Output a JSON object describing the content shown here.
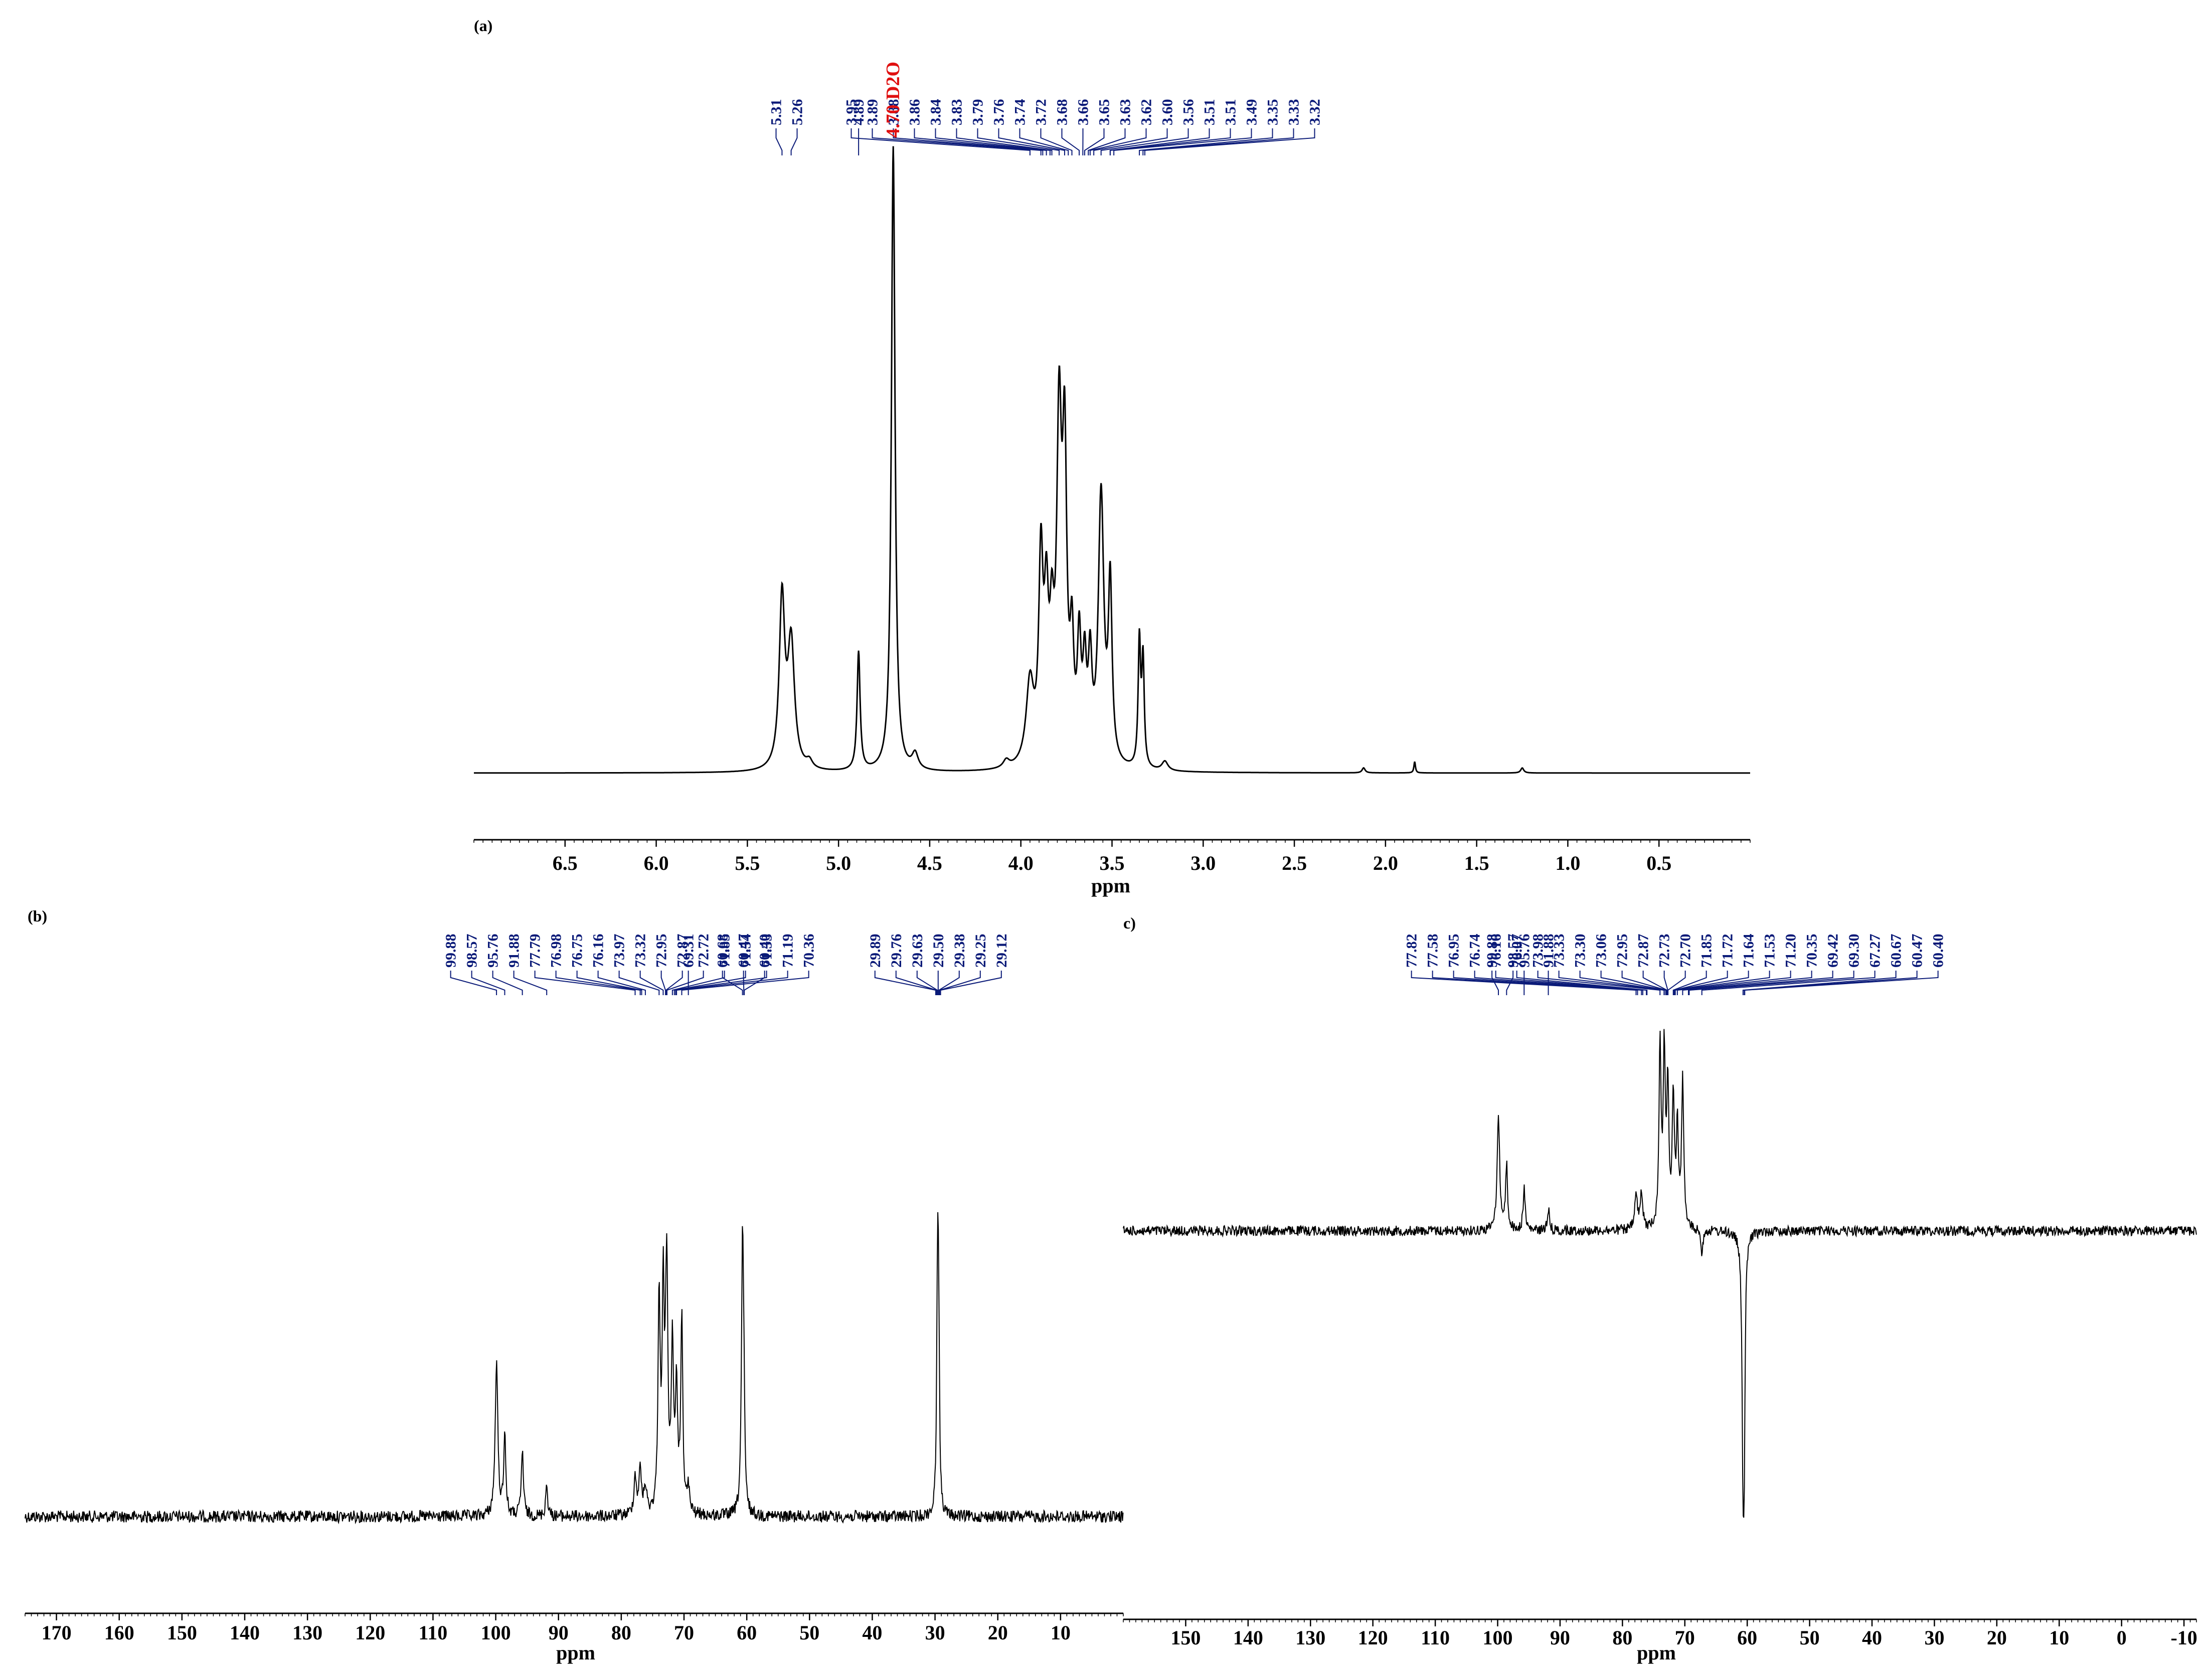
{
  "colors": {
    "spectrum": "#000000",
    "peak_label": "#0a1a78",
    "solvent_label": "#e01010",
    "axis": "#000000"
  },
  "chart_data": [
    {
      "id": "a",
      "type": "line",
      "panel_label": "(a)",
      "nucleus": "1H",
      "xlabel": "ppm",
      "x_reversed": true,
      "xlim": [
        7.0,
        0.0
      ],
      "xticks": [
        "6.5",
        "6.0",
        "5.5",
        "5.0",
        "4.5",
        "4.0",
        "3.5",
        "3.0",
        "2.5",
        "2.0",
        "1.5",
        "1.0",
        "0.5"
      ],
      "xtick_values": [
        6.5,
        6.0,
        5.5,
        5.0,
        4.5,
        4.0,
        3.5,
        3.0,
        2.5,
        2.0,
        1.5,
        1.0,
        0.5
      ],
      "ylim": [
        0,
        1.0
      ],
      "peaks": [
        {
          "ppm": 5.31,
          "height": 0.27,
          "width": 0.018
        },
        {
          "ppm": 5.26,
          "height": 0.2,
          "width": 0.022
        },
        {
          "ppm": 5.16,
          "height": 0.012,
          "width": 0.02
        },
        {
          "ppm": 4.89,
          "height": 0.19,
          "width": 0.01
        },
        {
          "ppm": 4.7,
          "height": 1.0,
          "width": 0.012
        },
        {
          "ppm": 4.58,
          "height": 0.025,
          "width": 0.02
        },
        {
          "ppm": 4.08,
          "height": 0.012,
          "width": 0.02
        },
        {
          "ppm": 3.95,
          "height": 0.13,
          "width": 0.025
        },
        {
          "ppm": 3.89,
          "height": 0.31,
          "width": 0.014
        },
        {
          "ppm": 3.86,
          "height": 0.22,
          "width": 0.014
        },
        {
          "ppm": 3.83,
          "height": 0.17,
          "width": 0.014
        },
        {
          "ppm": 3.79,
          "height": 0.52,
          "width": 0.016
        },
        {
          "ppm": 3.76,
          "height": 0.46,
          "width": 0.014
        },
        {
          "ppm": 3.72,
          "height": 0.17,
          "width": 0.012
        },
        {
          "ppm": 3.68,
          "height": 0.18,
          "width": 0.012
        },
        {
          "ppm": 3.65,
          "height": 0.14,
          "width": 0.012
        },
        {
          "ppm": 3.62,
          "height": 0.15,
          "width": 0.012
        },
        {
          "ppm": 3.56,
          "height": 0.43,
          "width": 0.018
        },
        {
          "ppm": 3.51,
          "height": 0.28,
          "width": 0.012
        },
        {
          "ppm": 3.35,
          "height": 0.2,
          "width": 0.008
        },
        {
          "ppm": 3.33,
          "height": 0.17,
          "width": 0.008
        },
        {
          "ppm": 3.21,
          "height": 0.015,
          "width": 0.02
        },
        {
          "ppm": 2.12,
          "height": 0.008,
          "width": 0.01
        },
        {
          "ppm": 1.84,
          "height": 0.018,
          "width": 0.005
        },
        {
          "ppm": 1.25,
          "height": 0.008,
          "width": 0.01
        }
      ],
      "peak_label_groups": [
        {
          "labels": [
            "5.31",
            "5.26"
          ],
          "ppms": [
            5.31,
            5.26
          ]
        },
        {
          "labels": [
            "4.89"
          ],
          "ppms": [
            4.89
          ]
        },
        {
          "labels": [
            "3.95",
            "3.89",
            "3.88",
            "3.86",
            "3.84",
            "3.83",
            "3.79",
            "3.76",
            "3.74",
            "3.72",
            "3.68",
            "3.66",
            "3.65",
            "3.63",
            "3.62",
            "3.60",
            "3.56",
            "3.51",
            "3.51",
            "3.49",
            "3.35",
            "3.33",
            "3.32"
          ],
          "ppms": [
            3.95,
            3.89,
            3.88,
            3.86,
            3.84,
            3.83,
            3.79,
            3.76,
            3.74,
            3.72,
            3.68,
            3.66,
            3.65,
            3.63,
            3.62,
            3.6,
            3.56,
            3.51,
            3.51,
            3.49,
            3.35,
            3.33,
            3.32
          ]
        }
      ],
      "solvent_label": {
        "text": "4.70 D2O",
        "ppm": 4.7
      }
    },
    {
      "id": "b",
      "type": "line",
      "panel_label": "(b)",
      "nucleus": "13C",
      "xlabel": "ppm",
      "x_reversed": true,
      "xlim": [
        175,
        0
      ],
      "xticks": [
        "170",
        "160",
        "150",
        "140",
        "130",
        "120",
        "110",
        "100",
        "90",
        "80",
        "70",
        "60",
        "50",
        "40",
        "30",
        "20",
        "10"
      ],
      "xtick_values": [
        170,
        160,
        150,
        140,
        130,
        120,
        110,
        100,
        90,
        80,
        70,
        60,
        50,
        40,
        30,
        20,
        10
      ],
      "ylim": [
        -0.05,
        1.0
      ],
      "peaks": [
        {
          "ppm": 99.88,
          "height": 0.58,
          "width": 0.25
        },
        {
          "ppm": 98.57,
          "height": 0.31,
          "width": 0.2
        },
        {
          "ppm": 95.76,
          "height": 0.25,
          "width": 0.2
        },
        {
          "ppm": 91.88,
          "height": 0.12,
          "width": 0.2
        },
        {
          "ppm": 77.79,
          "height": 0.14,
          "width": 0.25
        },
        {
          "ppm": 76.98,
          "height": 0.16,
          "width": 0.25
        },
        {
          "ppm": 76.16,
          "height": 0.1,
          "width": 0.25
        },
        {
          "ppm": 73.97,
          "height": 0.82,
          "width": 0.2
        },
        {
          "ppm": 73.32,
          "height": 0.8,
          "width": 0.2
        },
        {
          "ppm": 72.87,
          "height": 0.3,
          "width": 0.2
        },
        {
          "ppm": 72.72,
          "height": 0.7,
          "width": 0.2
        },
        {
          "ppm": 71.85,
          "height": 0.65,
          "width": 0.2
        },
        {
          "ppm": 71.19,
          "height": 0.45,
          "width": 0.2
        },
        {
          "ppm": 70.36,
          "height": 0.73,
          "width": 0.2
        },
        {
          "ppm": 69.31,
          "height": 0.1,
          "width": 0.2
        },
        {
          "ppm": 60.68,
          "height": 1.0,
          "width": 0.2
        },
        {
          "ppm": 60.47,
          "height": 0.3,
          "width": 0.15
        },
        {
          "ppm": 29.63,
          "height": 0.62,
          "width": 0.15
        },
        {
          "ppm": 29.5,
          "height": 0.6,
          "width": 0.15
        },
        {
          "ppm": 29.38,
          "height": 0.3,
          "width": 0.15
        }
      ],
      "peak_label_groups": [
        {
          "labels": [
            "99.88",
            "98.57",
            "95.76",
            "91.88",
            "77.79",
            "76.98",
            "76.75",
            "76.16",
            "73.97",
            "73.32",
            "72.95",
            "72.87",
            "72.72",
            "71.85",
            "71.54",
            "71.33",
            "71.19",
            "70.36"
          ],
          "ppms": [
            99.88,
            98.57,
            95.76,
            91.88,
            77.79,
            76.98,
            76.75,
            76.16,
            73.97,
            73.32,
            72.95,
            72.87,
            72.72,
            71.85,
            71.54,
            71.33,
            71.19,
            70.36
          ]
        },
        {
          "labels": [
            "69.31"
          ],
          "ppms": [
            69.31
          ]
        },
        {
          "labels": [
            "60.68",
            "60.47",
            "60.40"
          ],
          "ppms": [
            60.68,
            60.47,
            60.4
          ]
        },
        {
          "labels": [
            "29.89",
            "29.76",
            "29.63",
            "29.50",
            "29.38",
            "29.25",
            "29.12"
          ],
          "ppms": [
            29.89,
            29.76,
            29.63,
            29.5,
            29.38,
            29.25,
            29.12
          ]
        }
      ]
    },
    {
      "id": "c",
      "type": "line",
      "panel_label": "(c)",
      "panel_label_text": "c)",
      "nucleus": "13C DEPT-135",
      "xlabel": "ppm",
      "x_reversed": true,
      "xlim": [
        160,
        -12
      ],
      "xticks": [
        "150",
        "140",
        "130",
        "120",
        "110",
        "100",
        "90",
        "80",
        "70",
        "60",
        "50",
        "40",
        "30",
        "20",
        "10",
        "0",
        "-10"
      ],
      "xtick_values": [
        150,
        140,
        130,
        120,
        110,
        100,
        90,
        80,
        70,
        60,
        50,
        40,
        30,
        20,
        10,
        0,
        -10
      ],
      "ylim": [
        -0.7,
        0.5
      ],
      "peaks": [
        {
          "ppm": 99.88,
          "height": 0.3,
          "width": 0.25
        },
        {
          "ppm": 98.57,
          "height": 0.17,
          "width": 0.2
        },
        {
          "ppm": 95.76,
          "height": 0.11,
          "width": 0.2
        },
        {
          "ppm": 91.88,
          "height": 0.06,
          "width": 0.2
        },
        {
          "ppm": 77.82,
          "height": 0.09,
          "width": 0.25
        },
        {
          "ppm": 76.95,
          "height": 0.09,
          "width": 0.25
        },
        {
          "ppm": 73.98,
          "height": 0.48,
          "width": 0.2
        },
        {
          "ppm": 73.3,
          "height": 0.45,
          "width": 0.2
        },
        {
          "ppm": 72.73,
          "height": 0.36,
          "width": 0.2
        },
        {
          "ppm": 71.85,
          "height": 0.34,
          "width": 0.2
        },
        {
          "ppm": 71.2,
          "height": 0.26,
          "width": 0.2
        },
        {
          "ppm": 70.35,
          "height": 0.4,
          "width": 0.2
        },
        {
          "ppm": 67.27,
          "height": -0.06,
          "width": 0.2
        },
        {
          "ppm": 60.67,
          "height": -0.6,
          "width": 0.2
        },
        {
          "ppm": 60.47,
          "height": -0.4,
          "width": 0.15
        }
      ],
      "peak_label_groups": [
        {
          "labels": [
            "99.88",
            "98.57"
          ],
          "ppms": [
            99.88,
            98.57
          ]
        },
        {
          "labels": [
            "95.76"
          ],
          "ppms": [
            95.76
          ]
        },
        {
          "labels": [
            "91.88"
          ],
          "ppms": [
            91.88
          ]
        },
        {
          "labels": [
            "77.82",
            "77.58",
            "76.95",
            "76.74",
            "76.16",
            "76.07",
            "73.98",
            "73.33",
            "73.30",
            "73.06",
            "72.95",
            "72.87",
            "72.73",
            "72.70",
            "71.85",
            "71.72",
            "71.64",
            "71.53",
            "71.20",
            "70.35",
            "69.42",
            "69.30",
            "67.27",
            "60.67",
            "60.47",
            "60.40"
          ],
          "ppms": [
            77.82,
            77.58,
            76.95,
            76.74,
            76.16,
            76.07,
            73.98,
            73.33,
            73.3,
            73.06,
            72.95,
            72.87,
            72.73,
            72.7,
            71.85,
            71.72,
            71.64,
            71.53,
            71.2,
            70.35,
            69.42,
            69.3,
            67.27,
            60.67,
            60.47,
            60.4
          ]
        }
      ]
    }
  ]
}
